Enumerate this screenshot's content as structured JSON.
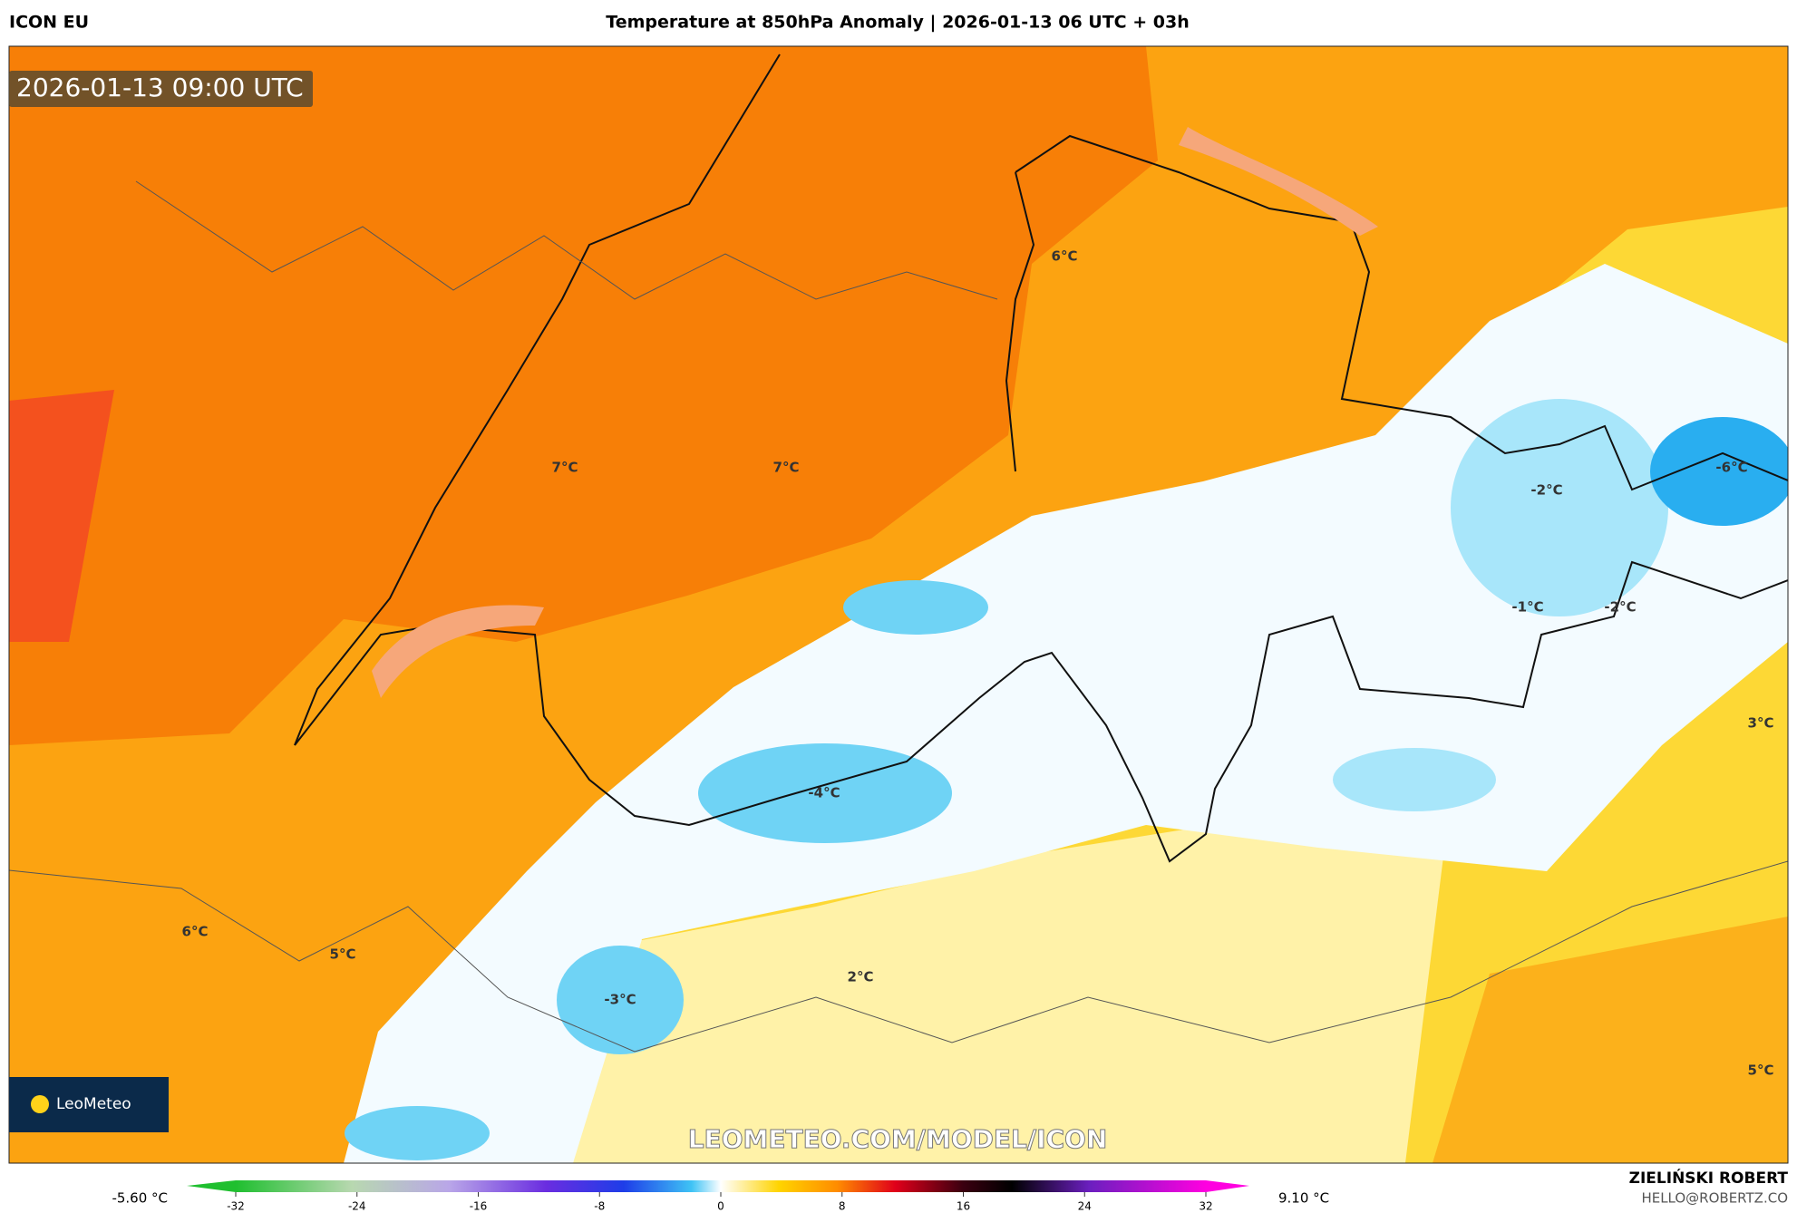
{
  "header": {
    "model": "ICON EU",
    "title": "Temperature at 850hPa Anomaly | 2026-01-13 06 UTC + 03h"
  },
  "map": {
    "valid_time": "2026-01-13 09:00 UTC",
    "labels": [
      "6°C",
      "7°C",
      "7°C",
      "-6°C",
      "-2°C",
      "-1°C",
      "-2°C",
      "3°C",
      "-4°C",
      "6°C",
      "5°C",
      "2°C",
      "-3°C",
      "5°C"
    ],
    "logo": "LeoMeteo",
    "watermark": "LEOMETEO.COM/MODEL/ICON"
  },
  "colorbar": {
    "min_label": "-5.60 °C",
    "max_label": "9.10 °C",
    "ticks": [
      -32,
      -24,
      -16,
      -8,
      0,
      8,
      16,
      24,
      32
    ]
  },
  "footer": {
    "author": "ZIELIŃSKI ROBERT",
    "contact": "HELLO@ROBERTZ.CO"
  }
}
